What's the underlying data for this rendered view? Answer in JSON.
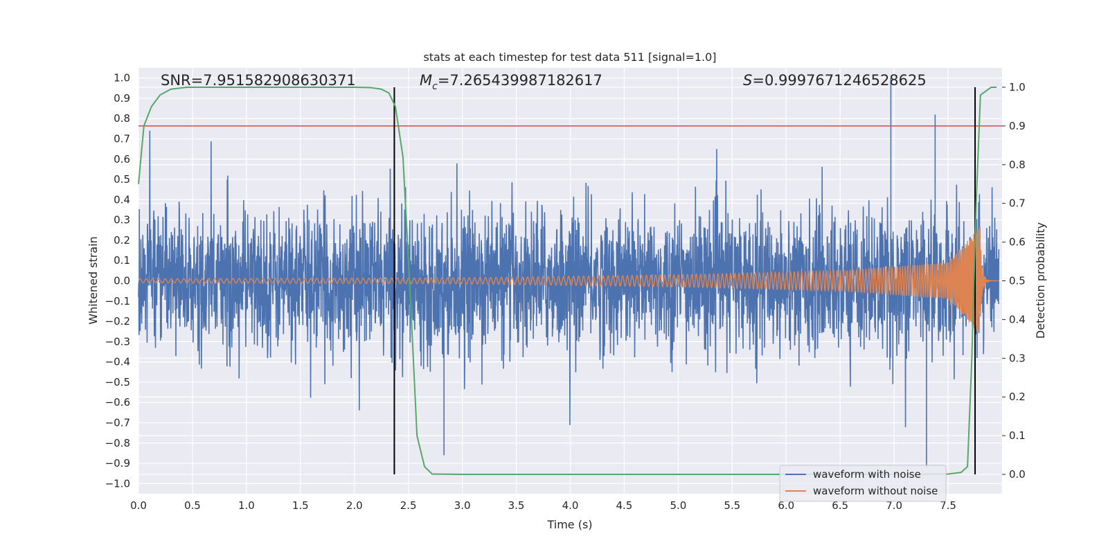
{
  "chart_data": {
    "type": "line",
    "title": "stats at each timestep for test data 511 [signal=1.0]",
    "xlabel": "Time (s)",
    "ylabel_left": "Whitened strain",
    "ylabel_right": "Detection probability",
    "xlim": [
      0.0,
      8.0
    ],
    "ylim_left": [
      -1.05,
      1.05
    ],
    "ylim_right": [
      -0.05,
      1.05
    ],
    "x_ticks": [
      "0.0",
      "0.5",
      "1.0",
      "1.5",
      "2.0",
      "2.5",
      "3.0",
      "3.5",
      "4.0",
      "4.5",
      "5.0",
      "5.5",
      "6.0",
      "6.5",
      "7.0",
      "7.5"
    ],
    "y_left_ticks": [
      "1.0",
      "0.9",
      "0.8",
      "0.7",
      "0.6",
      "0.5",
      "0.4",
      "0.3",
      "0.2",
      "0.1",
      "0.0",
      "-0.1",
      "-0.2",
      "-0.3",
      "-0.4",
      "-0.5",
      "-0.6",
      "-0.7",
      "-0.8",
      "-0.9",
      "-1.0"
    ],
    "y_right_ticks": [
      "1.0",
      "0.9",
      "0.8",
      "0.7",
      "0.6",
      "0.5",
      "0.4",
      "0.3",
      "0.2",
      "0.1",
      "0.0"
    ],
    "annotations": {
      "snr": "SNR=7.951582908630371",
      "mc_symbol": "M",
      "mc_sub": "c",
      "mc_value": "=7.265439987182617",
      "s_symbol": "S",
      "s_value": "=0.9997671246528625"
    },
    "threshold_line": {
      "value": 0.9,
      "axis": "right",
      "color": "#c44e52"
    },
    "vertical_lines": [
      2.37,
      7.75
    ],
    "series": [
      {
        "name": "waveform with noise",
        "color": "#4c72b0",
        "axis": "left",
        "description": "noisy whitened strain, roughly within -0.5..0.5 with spikes up to about ±0.75; isolated peaks near 6.97s (1.0) and 7.3s (-0.92)",
        "spikes": [
          [
            6.97,
            1.0
          ],
          [
            7.3,
            -0.92
          ],
          [
            7.38,
            0.82
          ],
          [
            2.83,
            -0.86
          ]
        ]
      },
      {
        "name": "waveform without noise",
        "color": "#dd8452",
        "axis": "left",
        "description": "chirp signal with slowly growing amplitude, peaking near 7.8s",
        "envelope": [
          [
            0.0,
            0.01
          ],
          [
            3.0,
            0.015
          ],
          [
            5.0,
            0.03
          ],
          [
            6.5,
            0.05
          ],
          [
            7.5,
            0.09
          ],
          [
            7.8,
            0.27
          ]
        ],
        "merger_time": 7.8
      },
      {
        "name": "detection probability",
        "color": "#55a868",
        "axis": "right",
        "x": [
          0.0,
          0.05,
          0.12,
          0.2,
          0.3,
          0.45,
          0.7,
          1.0,
          1.5,
          2.0,
          2.15,
          2.25,
          2.32,
          2.38,
          2.45,
          2.52,
          2.58,
          2.65,
          2.72,
          3.0,
          4.0,
          5.0,
          6.0,
          7.0,
          7.5,
          7.62,
          7.68,
          7.72,
          7.76,
          7.8,
          7.85,
          7.9,
          7.95
        ],
        "y": [
          0.75,
          0.9,
          0.95,
          0.98,
          0.995,
          1.0,
          1.0,
          1.0,
          1.0,
          1.0,
          0.999,
          0.995,
          0.985,
          0.95,
          0.82,
          0.45,
          0.1,
          0.02,
          0.001,
          0.0,
          0.0,
          0.0,
          0.0,
          0.0,
          0.001,
          0.005,
          0.02,
          0.3,
          0.7,
          0.98,
          0.99,
          1.0,
          1.0
        ]
      }
    ],
    "legend": {
      "placement": "lower-right",
      "entries": [
        "waveform with noise",
        "waveform without noise"
      ]
    }
  }
}
